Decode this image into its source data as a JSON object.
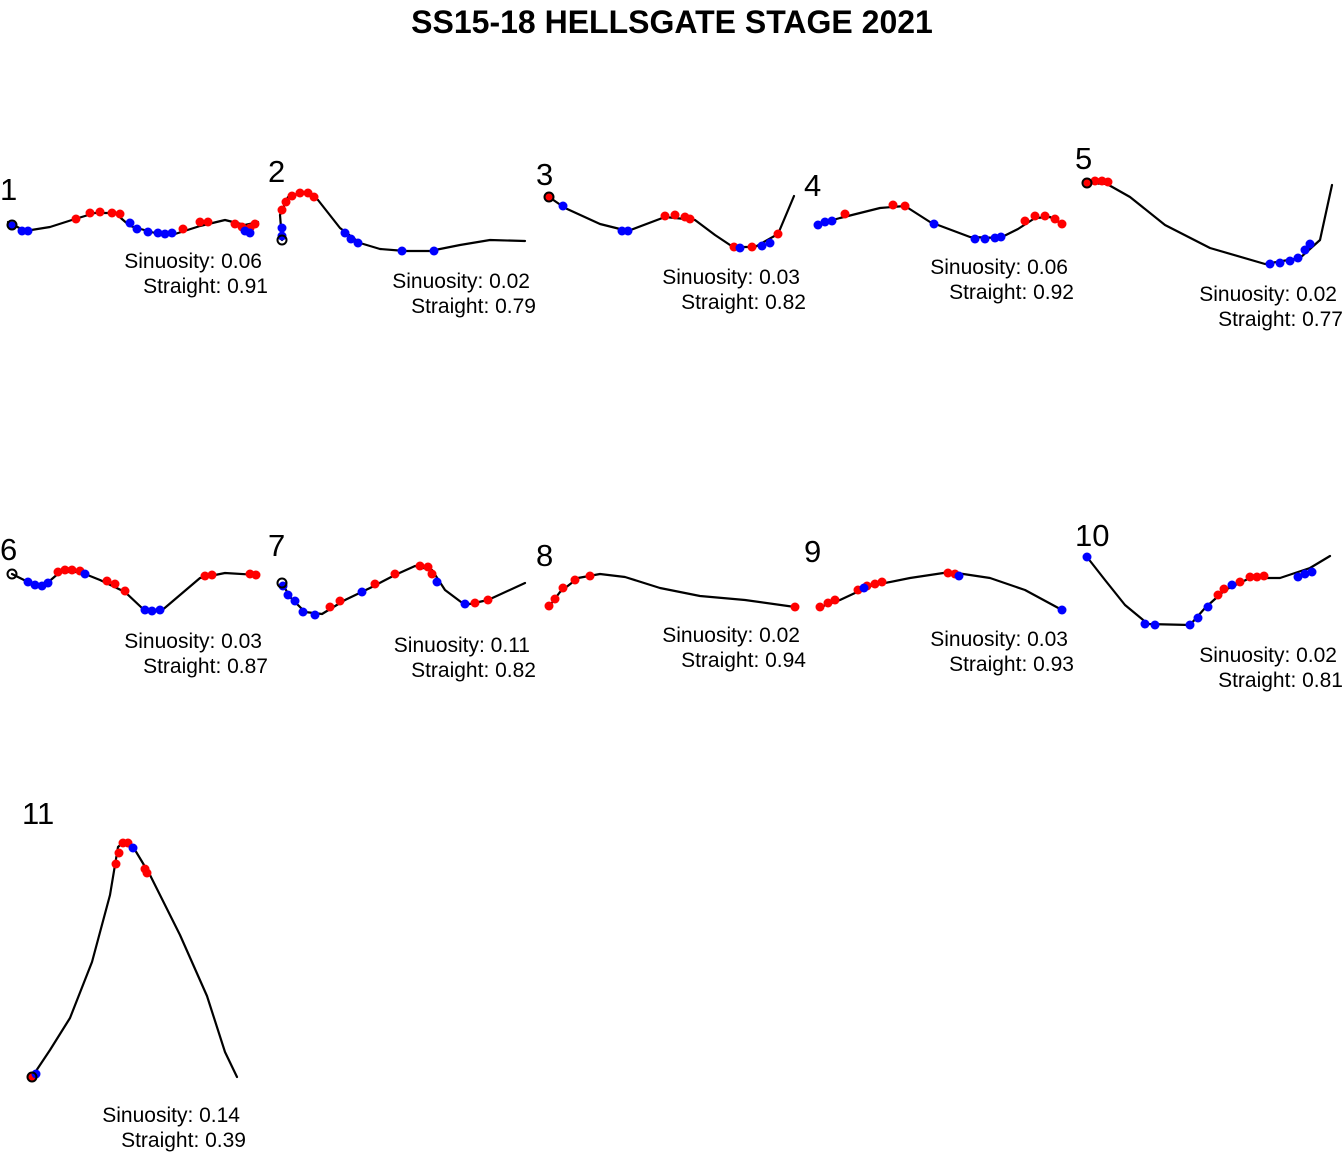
{
  "title": "SS15-18 HELLSGATE STAGE 2021",
  "colors": {
    "line": "#000000",
    "red_marker": "#ff0000",
    "blue_marker": "#0000ff",
    "start_marker": "#000000"
  },
  "sinuosity_label": "Sinuosity:",
  "straight_label": "Straight:",
  "segments": [
    {
      "id": "1",
      "sinuosity": "0.06",
      "straight": "0.91"
    },
    {
      "id": "2",
      "sinuosity": "0.02",
      "straight": "0.79"
    },
    {
      "id": "3",
      "sinuosity": "0.03",
      "straight": "0.82"
    },
    {
      "id": "4",
      "sinuosity": "0.06",
      "straight": "0.92"
    },
    {
      "id": "5",
      "sinuosity": "0.02",
      "straight": "0.77"
    },
    {
      "id": "6",
      "sinuosity": "0.03",
      "straight": "0.87"
    },
    {
      "id": "7",
      "sinuosity": "0.11",
      "straight": "0.82"
    },
    {
      "id": "8",
      "sinuosity": "0.02",
      "straight": "0.94"
    },
    {
      "id": "9",
      "sinuosity": "0.03",
      "straight": "0.93"
    },
    {
      "id": "10",
      "sinuosity": "0.02",
      "straight": "0.81"
    },
    {
      "id": "11",
      "sinuosity": "0.14",
      "straight": "0.39"
    }
  ]
}
